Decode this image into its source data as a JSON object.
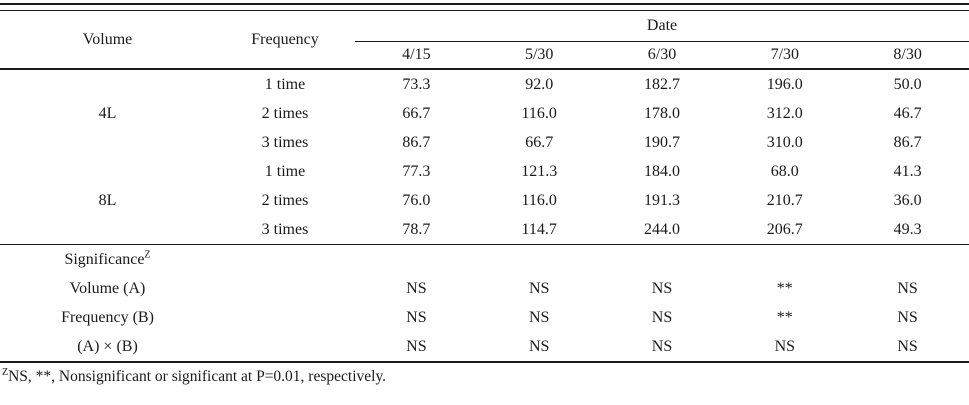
{
  "table": {
    "header": {
      "volume": "Volume",
      "frequency": "Frequency",
      "date_group": "Date",
      "date_columns": [
        "4/15",
        "5/30",
        "6/30",
        "7/30",
        "8/30"
      ]
    },
    "groups": [
      {
        "volume": "4L",
        "rows": [
          {
            "frequency": "1 time",
            "values": [
              "73.3",
              "92.0",
              "182.7",
              "196.0",
              "50.0"
            ]
          },
          {
            "frequency": "2 times",
            "values": [
              "66.7",
              "116.0",
              "178.0",
              "312.0",
              "46.7"
            ]
          },
          {
            "frequency": "3 times",
            "values": [
              "86.7",
              "66.7",
              "190.7",
              "310.0",
              "86.7"
            ]
          }
        ]
      },
      {
        "volume": "8L",
        "rows": [
          {
            "frequency": "1 time",
            "values": [
              "77.3",
              "121.3",
              "184.0",
              "68.0",
              "41.3"
            ]
          },
          {
            "frequency": "2 times",
            "values": [
              "76.0",
              "116.0",
              "191.3",
              "210.7",
              "36.0"
            ]
          },
          {
            "frequency": "3 times",
            "values": [
              "78.7",
              "114.7",
              "244.0",
              "206.7",
              "49.3"
            ]
          }
        ]
      }
    ],
    "significance": {
      "title": "Significance",
      "title_sup": "Z",
      "rows": [
        {
          "label": "Volume (A)",
          "values": [
            "NS",
            "NS",
            "NS",
            "**",
            "NS"
          ]
        },
        {
          "label": "Frequency (B)",
          "values": [
            "NS",
            "NS",
            "NS",
            "**",
            "NS"
          ]
        },
        {
          "label": "(A) × (B)",
          "values": [
            "NS",
            "NS",
            "NS",
            "NS",
            "NS"
          ]
        }
      ]
    },
    "footnote": {
      "sup": "Z",
      "text": "NS, **, Nonsignificant or significant at P=0.01, respectively."
    }
  },
  "colors": {
    "text": "#1a1a1a",
    "background": "#ffffff",
    "rule": "#1a1a1a"
  }
}
